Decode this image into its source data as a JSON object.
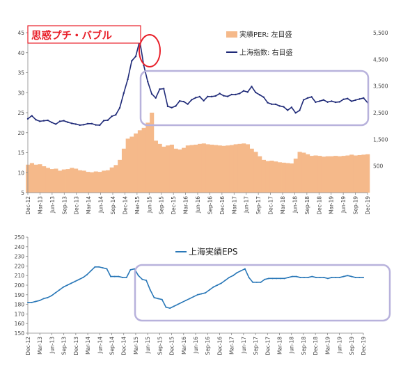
{
  "chart_data": [
    {
      "type": "area",
      "annotation": "思惑プチ・バブル",
      "legend_placement": "top-right",
      "series": [
        {
          "name": "実績PER: 左目盛",
          "type": "area",
          "axis": "left",
          "color": "#f5b98a",
          "values": [
            12.0,
            12.4,
            12.0,
            12.1,
            11.6,
            11.2,
            10.9,
            11.0,
            10.5,
            10.8,
            10.9,
            11.2,
            11.0,
            10.6,
            10.5,
            10.2,
            10.1,
            10.3,
            10.2,
            10.5,
            10.6,
            11.3,
            11.9,
            13.2,
            16.0,
            18.5,
            19.0,
            19.8,
            20.6,
            21.2,
            22.5,
            25.0,
            18.0,
            17.2,
            16.5,
            16.8,
            17.0,
            16.0,
            15.8,
            16.2,
            16.8,
            16.9,
            17.0,
            17.2,
            17.3,
            17.1,
            17.0,
            16.9,
            16.8,
            16.7,
            16.8,
            16.9,
            17.1,
            17.2,
            17.3,
            17.1,
            16.0,
            15.2,
            14.1,
            13.2,
            12.9,
            13.0,
            12.8,
            12.6,
            12.5,
            12.4,
            12.3,
            13.5,
            15.2,
            15.0,
            14.6,
            14.2,
            14.3,
            14.2,
            14.0,
            14.1,
            14.1,
            14.2,
            14.1,
            14.2,
            14.3,
            14.5,
            14.3,
            14.4,
            14.5,
            14.6
          ]
        },
        {
          "name": "上海指数: 右目盛",
          "type": "line",
          "axis": "right",
          "color": "#1f2a78",
          "values": [
            2269,
            2385,
            2236,
            2177,
            2197,
            2212,
            2133,
            2070,
            2174,
            2198,
            2141,
            2099,
            2071,
            2033,
            2049,
            2088,
            2088,
            2039,
            2033,
            2201,
            2217,
            2363,
            2420,
            2682,
            3234,
            3748,
            4441,
            4611,
            5200,
            4277,
            3663,
            3206,
            3053,
            3382,
            3400,
            2738,
            2688,
            2748,
            2939,
            2916,
            2822,
            2985,
            3061,
            3100,
            2949,
            3104,
            3103,
            3128,
            3217,
            3135,
            3110,
            3181,
            3181,
            3220,
            3319,
            3273,
            3480,
            3259,
            3169,
            3082,
            2876,
            2819,
            2816,
            2752,
            2721,
            2591,
            2701,
            2493,
            2584,
            2978,
            3050,
            3090,
            2894,
            2932,
            2978,
            2898,
            2932,
            2890,
            2905,
            3000,
            3029,
            2929,
            2972,
            3012,
            3050,
            2880
          ]
        }
      ],
      "x_tick_labels": [
        "Dec-12",
        "Mar-13",
        "Jun-13",
        "Sep-13",
        "Dec-13",
        "Mar-14",
        "Jun-14",
        "Sep-14",
        "Dec-14",
        "Mar-15",
        "Jun-15",
        "Sep-15",
        "Dec-15",
        "Mar-16",
        "Jun-16",
        "Sep-16",
        "Dec-16",
        "Mar-17",
        "Jun-17",
        "Sep-17",
        "Dec-17",
        "Mar-18",
        "Jun-18",
        "Sep-18",
        "Dec-18",
        "Mar-19",
        "Jun-19",
        "Sep-19",
        "Dec-19"
      ],
      "y_left_ticks": [
        "5",
        "10",
        "15",
        "20",
        "25",
        "30",
        "35",
        "40",
        "45"
      ],
      "y_right_ticks": [
        "500",
        "1,500",
        "2,500",
        "3,500",
        "4,500",
        "5,500"
      ],
      "ylim_left": [
        5,
        45
      ],
      "ylim_right": [
        -500,
        5500
      ],
      "grid": false
    },
    {
      "type": "line",
      "legend_placement": "top-center",
      "series": [
        {
          "name": "上海実績EPS",
          "color": "#2a78b8",
          "values": [
            182,
            182,
            183,
            184,
            186,
            187,
            189,
            192,
            195,
            198,
            200,
            202,
            204,
            206,
            208,
            211,
            215,
            219,
            219,
            218,
            217,
            209,
            209,
            209,
            208,
            208,
            216,
            217,
            210,
            206,
            205,
            195,
            187,
            186,
            185,
            177,
            176,
            178,
            180,
            182,
            184,
            186,
            188,
            190,
            191,
            192,
            195,
            198,
            200,
            202,
            205,
            208,
            210,
            213,
            215,
            217,
            208,
            203,
            203,
            203,
            206,
            207,
            207,
            207,
            207,
            207,
            208,
            209,
            209,
            208,
            208,
            208,
            209,
            208,
            208,
            208,
            207,
            208,
            208,
            208,
            209,
            210,
            209,
            208,
            208,
            208
          ]
        }
      ],
      "x_tick_labels": [
        "Dec-12",
        "Mar-13",
        "Jun-13",
        "Sep-13",
        "Dec-13",
        "Mar-14",
        "Jun-14",
        "Sep-14",
        "Dec-14",
        "Mar-15",
        "Jun-15",
        "Sep-15",
        "Dec-15",
        "Mar-16",
        "Jun-16",
        "Sep-16",
        "Dec-16",
        "Mar-17",
        "Jun-17",
        "Sep-17",
        "Dec-17",
        "Mar-18",
        "Jun-18",
        "Sep-18",
        "Dec-18",
        "Mar-19",
        "Jun-19",
        "Sep-19",
        "Dec-19"
      ],
      "y_ticks": [
        "150",
        "160",
        "170",
        "180",
        "190",
        "200",
        "210",
        "220",
        "230",
        "240",
        "250"
      ],
      "ylim": [
        150,
        250
      ],
      "grid": false
    }
  ]
}
